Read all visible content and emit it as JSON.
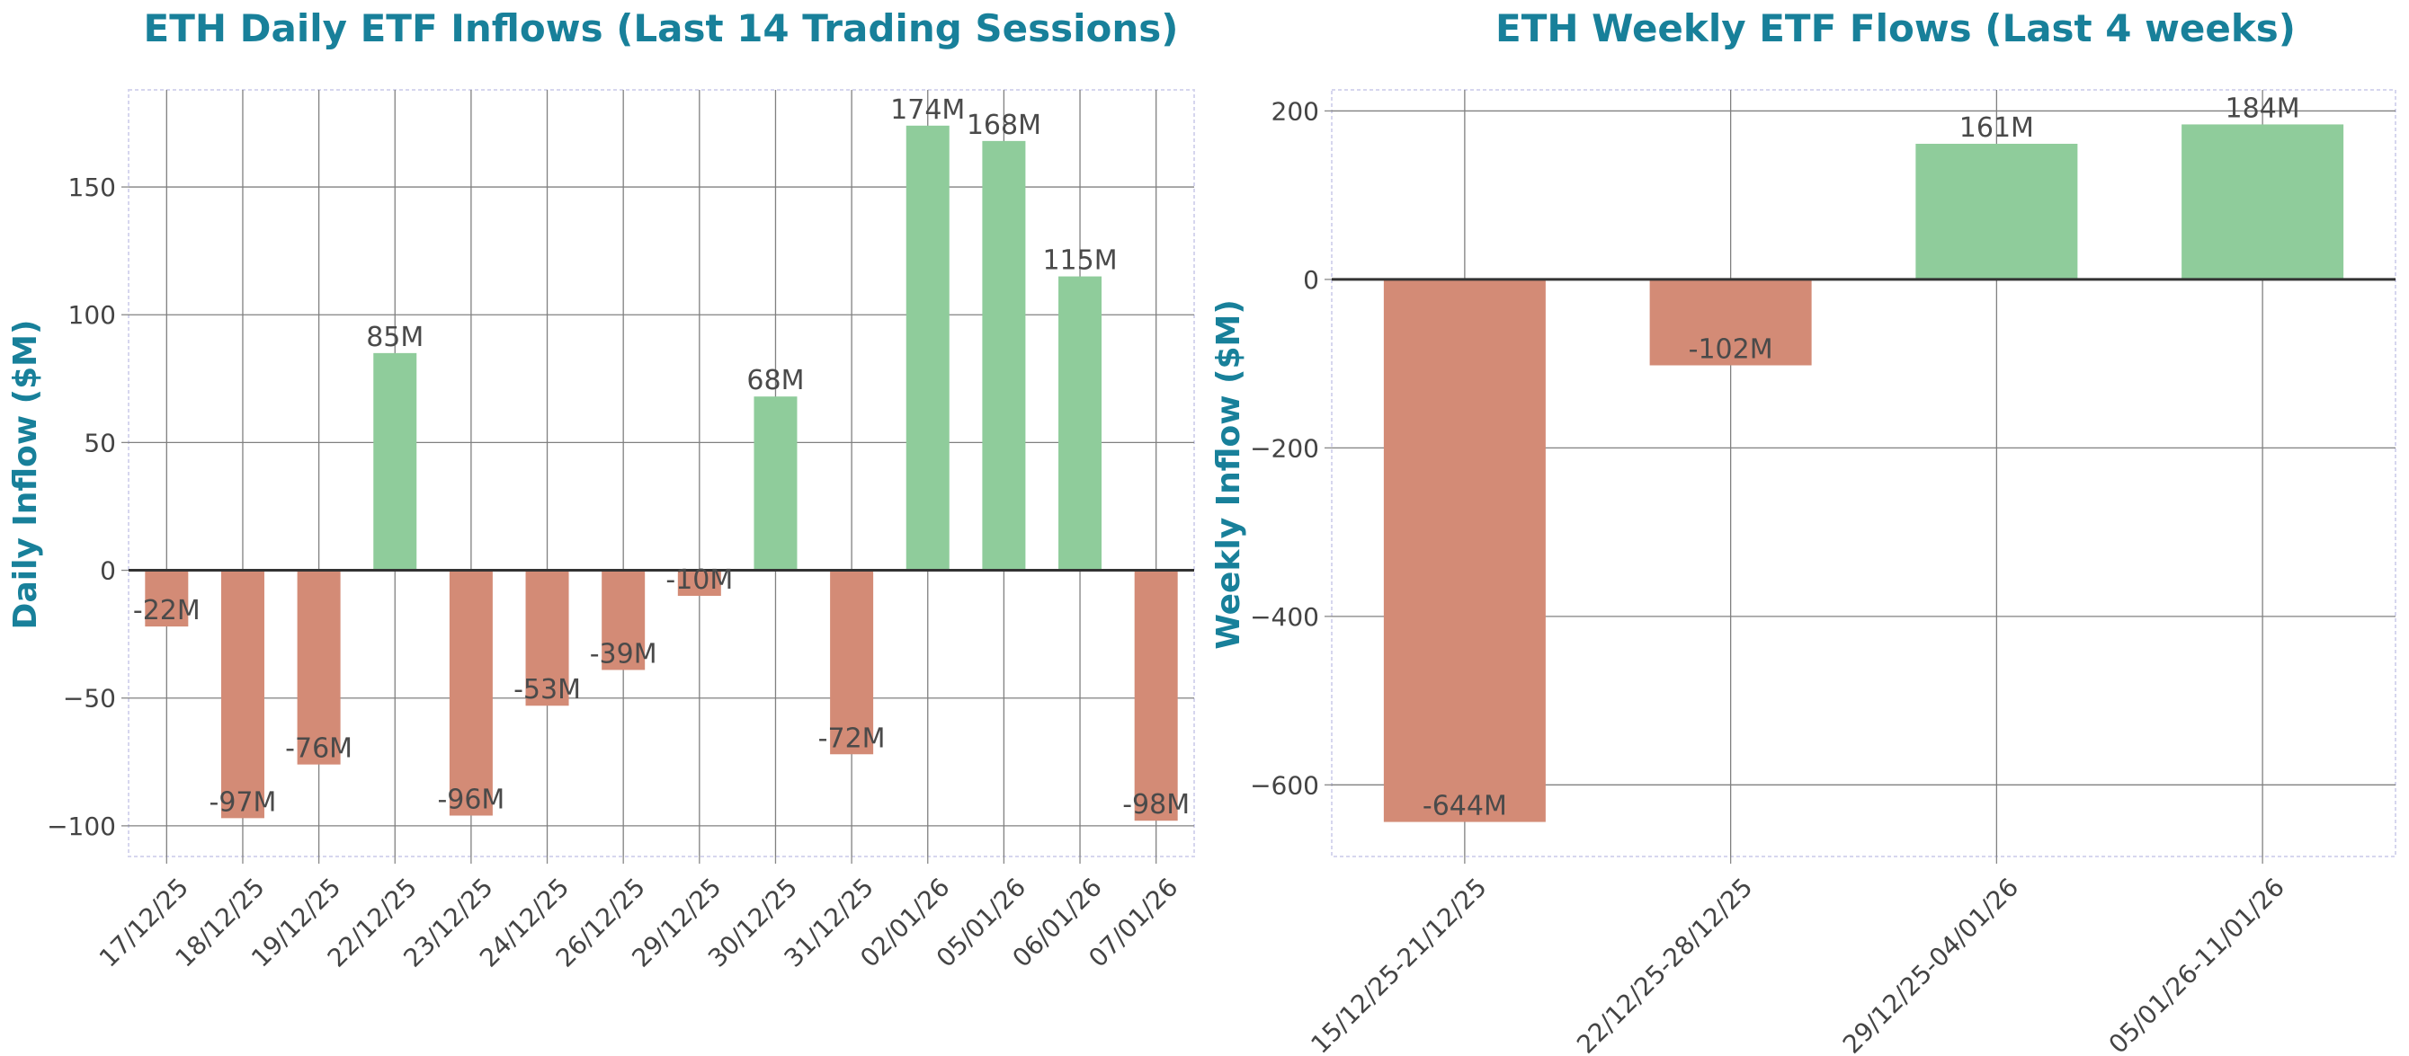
{
  "colors": {
    "positive": "#8fcc9b",
    "negative": "#d38b76",
    "title": "#18809a",
    "text": "#444444"
  },
  "chart_data": [
    {
      "type": "bar",
      "title": "ETH Daily ETF Inflows (Last 14 Trading Sessions)",
      "xlabel": "",
      "ylabel": "Daily Inflow ($M)",
      "categories": [
        "17/12/25",
        "18/12/25",
        "19/12/25",
        "22/12/25",
        "23/12/25",
        "24/12/25",
        "26/12/25",
        "29/12/25",
        "30/12/25",
        "31/12/25",
        "02/01/26",
        "05/01/26",
        "06/01/26",
        "07/01/26"
      ],
      "values": [
        -22,
        -97,
        -76,
        85,
        -96,
        -53,
        -39,
        -10,
        68,
        -72,
        174,
        168,
        115,
        -98
      ],
      "data_labels": [
        "-22M",
        "-97M",
        "-76M",
        "85M",
        "-96M",
        "-53M",
        "-39M",
        "-10M",
        "68M",
        "-72M",
        "174M",
        "168M",
        "115M",
        "-98M"
      ],
      "ylim": [
        -112,
        188
      ],
      "yticks": [
        -100,
        -50,
        0,
        50,
        100,
        150
      ],
      "ytick_labels": [
        "−100",
        "−50",
        "0",
        "50",
        "100",
        "150"
      ],
      "grid": true
    },
    {
      "type": "bar",
      "title": "ETH Weekly ETF Flows (Last 4 weeks)",
      "xlabel": "",
      "ylabel": "Weekly Inflow ($M)",
      "categories": [
        "15/12/25-21/12/25",
        "22/12/25-28/12/25",
        "29/12/25-04/01/26",
        "05/01/26-11/01/26"
      ],
      "values": [
        -644,
        -102,
        161,
        184
      ],
      "data_labels": [
        "-644M",
        "-102M",
        "161M",
        "184M"
      ],
      "ylim": [
        -685,
        225
      ],
      "yticks": [
        -600,
        -400,
        -200,
        0,
        200
      ],
      "ytick_labels": [
        "−600",
        "−400",
        "−200",
        "0",
        "200"
      ],
      "grid": true
    }
  ]
}
